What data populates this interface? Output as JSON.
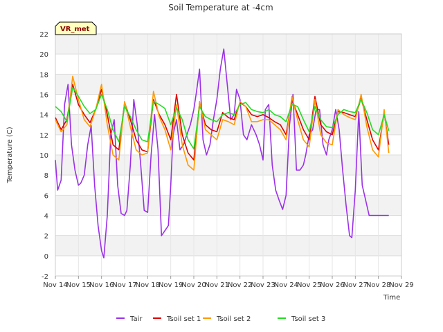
{
  "chart_data": {
    "type": "line",
    "title": "Soil Temperature at -4cm",
    "xlabel": "Time",
    "ylabel": "Temperature (C)",
    "badge": "VR_met",
    "xlim": [
      14,
      29
    ],
    "ylim": [
      -2,
      22
    ],
    "x_ticks": [
      {
        "value": 14,
        "label": "Nov 14"
      },
      {
        "value": 15,
        "label": "Nov 15"
      },
      {
        "value": 16,
        "label": "Nov 16"
      },
      {
        "value": 17,
        "label": "Nov 17"
      },
      {
        "value": 18,
        "label": "Nov 18"
      },
      {
        "value": 19,
        "label": "Nov 19"
      },
      {
        "value": 20,
        "label": "Nov 20"
      },
      {
        "value": 21,
        "label": "Nov 21"
      },
      {
        "value": 22,
        "label": "Nov 22"
      },
      {
        "value": 23,
        "label": "Nov 23"
      },
      {
        "value": 24,
        "label": "Nov 24"
      },
      {
        "value": 25,
        "label": "Nov 25"
      },
      {
        "value": 26,
        "label": "Nov 26"
      },
      {
        "value": 27,
        "label": "Nov 27"
      },
      {
        "value": 28,
        "label": "Nov 28"
      },
      {
        "value": 29,
        "label": "Nov 29"
      }
    ],
    "y_ticks": [
      -2,
      0,
      2,
      4,
      6,
      8,
      10,
      12,
      14,
      16,
      18,
      20,
      22
    ],
    "grid": true,
    "legend_position": "bottom",
    "series": [
      {
        "name": "Tair",
        "color": "#9b30e8",
        "x": [
          14.0,
          14.1,
          14.25,
          14.4,
          14.55,
          14.7,
          14.85,
          15.0,
          15.1,
          15.25,
          15.4,
          15.55,
          15.7,
          15.85,
          16.0,
          16.1,
          16.25,
          16.4,
          16.55,
          16.7,
          16.85,
          17.0,
          17.1,
          17.25,
          17.4,
          17.55,
          17.7,
          17.85,
          18.0,
          18.15,
          18.3,
          18.45,
          18.6,
          18.75,
          18.9,
          19.0,
          19.1,
          19.25,
          19.4,
          19.55,
          19.7,
          19.85,
          20.0,
          20.1,
          20.25,
          20.4,
          20.55,
          20.7,
          20.85,
          21.0,
          21.15,
          21.3,
          21.45,
          21.6,
          21.75,
          21.85,
          22.0,
          22.15,
          22.3,
          22.5,
          22.7,
          22.85,
          23.0,
          23.1,
          23.25,
          23.4,
          23.55,
          23.7,
          23.85,
          24.0,
          24.15,
          24.3,
          24.45,
          24.6,
          24.75,
          24.85,
          25.0,
          25.15,
          25.3,
          25.45,
          25.6,
          25.75,
          25.85,
          26.0,
          26.15,
          26.3,
          26.45,
          26.6,
          26.75,
          26.85,
          27.0,
          27.15,
          27.3,
          27.45,
          27.6,
          27.75,
          27.85,
          28.0,
          28.15,
          28.3,
          28.45
        ],
        "values": [
          9.5,
          6.5,
          7.5,
          15.0,
          17.0,
          11.0,
          8.5,
          7.0,
          7.2,
          8.0,
          11.0,
          12.9,
          7.0,
          3.0,
          0.5,
          -0.2,
          4.0,
          12.0,
          13.5,
          7.0,
          4.2,
          4.0,
          4.5,
          9.0,
          15.5,
          13.0,
          9.0,
          4.5,
          4.3,
          10.0,
          14.0,
          10.5,
          2.0,
          2.5,
          3.0,
          7.0,
          12.0,
          13.5,
          10.5,
          11.0,
          12.0,
          13.0,
          14.5,
          16.0,
          18.5,
          11.5,
          10.0,
          11.0,
          13.5,
          15.5,
          18.5,
          20.5,
          17.0,
          13.5,
          14.0,
          16.5,
          15.5,
          12.0,
          11.5,
          13.0,
          12.0,
          11.0,
          9.5,
          14.5,
          15.0,
          9.0,
          6.5,
          5.5,
          4.6,
          6.0,
          13.0,
          16.0,
          8.5,
          8.5,
          9.0,
          10.0,
          12.0,
          12.5,
          14.5,
          14.5,
          11.0,
          10.0,
          11.5,
          12.5,
          14.5,
          12.5,
          8.5,
          5.0,
          2.0,
          1.8,
          6.5,
          14.3,
          7.0,
          5.5,
          4.0,
          4.0,
          4.0,
          4.0,
          4.0,
          4.0,
          4.0
        ]
      },
      {
        "name": "Tsoil set 1",
        "color": "#dd0000",
        "x": [
          14.0,
          14.25,
          14.5,
          14.75,
          15.0,
          15.25,
          15.5,
          15.75,
          16.0,
          16.25,
          16.5,
          16.75,
          17.0,
          17.25,
          17.5,
          17.75,
          18.0,
          18.25,
          18.5,
          18.75,
          19.0,
          19.25,
          19.5,
          19.75,
          20.0,
          20.25,
          20.5,
          20.75,
          21.0,
          21.25,
          21.5,
          21.75,
          22.0,
          22.25,
          22.5,
          22.75,
          23.0,
          23.25,
          23.5,
          23.75,
          24.0,
          24.25,
          24.5,
          24.75,
          25.0,
          25.25,
          25.5,
          25.75,
          26.0,
          26.25,
          26.5,
          26.75,
          27.0,
          27.25,
          27.5,
          27.75,
          28.0,
          28.25,
          28.45
        ],
        "values": [
          13.7,
          12.5,
          13.5,
          17.0,
          15.0,
          14.0,
          13.2,
          14.5,
          16.5,
          14.0,
          11.0,
          10.5,
          15.2,
          13.5,
          11.5,
          10.5,
          10.3,
          15.5,
          14.0,
          13.0,
          11.5,
          16.0,
          12.0,
          10.2,
          9.5,
          15.2,
          13.0,
          12.5,
          12.3,
          14.2,
          13.7,
          13.5,
          15.2,
          14.8,
          14.0,
          13.8,
          14.0,
          13.7,
          13.3,
          13.0,
          12.0,
          15.5,
          14.0,
          12.5,
          11.5,
          15.8,
          13.0,
          12.3,
          12.0,
          14.3,
          14.2,
          14.0,
          13.8,
          15.6,
          13.5,
          11.5,
          10.5,
          14.2,
          11.0
        ]
      },
      {
        "name": "Tsoil set 2",
        "color": "#ff9900",
        "x": [
          14.0,
          14.25,
          14.5,
          14.75,
          15.0,
          15.25,
          15.5,
          15.75,
          16.0,
          16.25,
          16.5,
          16.75,
          17.0,
          17.25,
          17.5,
          17.75,
          18.0,
          18.25,
          18.5,
          18.75,
          19.0,
          19.25,
          19.5,
          19.75,
          20.0,
          20.25,
          20.5,
          20.75,
          21.0,
          21.25,
          21.5,
          21.75,
          22.0,
          22.25,
          22.5,
          22.75,
          23.0,
          23.25,
          23.5,
          23.75,
          24.0,
          24.25,
          24.5,
          24.75,
          25.0,
          25.25,
          25.5,
          25.75,
          26.0,
          26.25,
          26.5,
          26.75,
          27.0,
          27.25,
          27.5,
          27.75,
          28.0,
          28.25,
          28.45
        ],
        "values": [
          13.5,
          12.3,
          13.0,
          17.8,
          15.5,
          13.5,
          12.8,
          14.5,
          17.0,
          13.0,
          10.0,
          9.5,
          15.3,
          12.8,
          10.5,
          10.0,
          10.2,
          16.3,
          13.8,
          12.5,
          10.5,
          15.0,
          11.0,
          9.0,
          8.5,
          15.3,
          12.5,
          12.0,
          11.5,
          13.5,
          13.3,
          13.0,
          15.3,
          14.8,
          13.3,
          13.3,
          13.5,
          13.5,
          13.0,
          12.5,
          11.5,
          15.8,
          13.5,
          11.5,
          10.8,
          15.5,
          12.0,
          11.2,
          11.0,
          14.5,
          14.0,
          13.7,
          13.5,
          16.0,
          12.8,
          10.5,
          9.8,
          14.5,
          10.2
        ]
      },
      {
        "name": "Tsoil set 3",
        "color": "#22dd22",
        "x": [
          14.0,
          14.25,
          14.5,
          14.75,
          15.0,
          15.25,
          15.5,
          15.75,
          16.0,
          16.25,
          16.5,
          16.75,
          17.0,
          17.25,
          17.5,
          17.75,
          18.0,
          18.25,
          18.5,
          18.75,
          19.0,
          19.25,
          19.5,
          19.75,
          20.0,
          20.25,
          20.5,
          20.75,
          21.0,
          21.25,
          21.5,
          21.75,
          22.0,
          22.25,
          22.5,
          22.75,
          23.0,
          23.25,
          23.5,
          23.75,
          24.0,
          24.25,
          24.5,
          24.75,
          25.0,
          25.25,
          25.5,
          25.75,
          26.0,
          26.25,
          26.5,
          26.75,
          27.0,
          27.25,
          27.5,
          27.75,
          28.0,
          28.25,
          28.45
        ],
        "values": [
          14.8,
          14.3,
          13.3,
          16.7,
          15.8,
          14.8,
          14.1,
          14.5,
          16.0,
          14.5,
          12.5,
          11.3,
          14.8,
          13.8,
          12.5,
          11.5,
          11.3,
          15.3,
          15.0,
          14.6,
          13.0,
          14.7,
          13.5,
          11.5,
          10.6,
          14.8,
          13.8,
          13.5,
          13.3,
          14.0,
          14.2,
          14.0,
          15.0,
          15.2,
          14.5,
          14.3,
          14.2,
          14.5,
          14.0,
          13.8,
          13.3,
          15.0,
          14.8,
          13.5,
          12.3,
          14.8,
          13.5,
          12.8,
          12.7,
          14.0,
          14.5,
          14.3,
          14.2,
          15.5,
          14.2,
          12.5,
          12.0,
          14.0,
          12.4
        ]
      }
    ]
  }
}
